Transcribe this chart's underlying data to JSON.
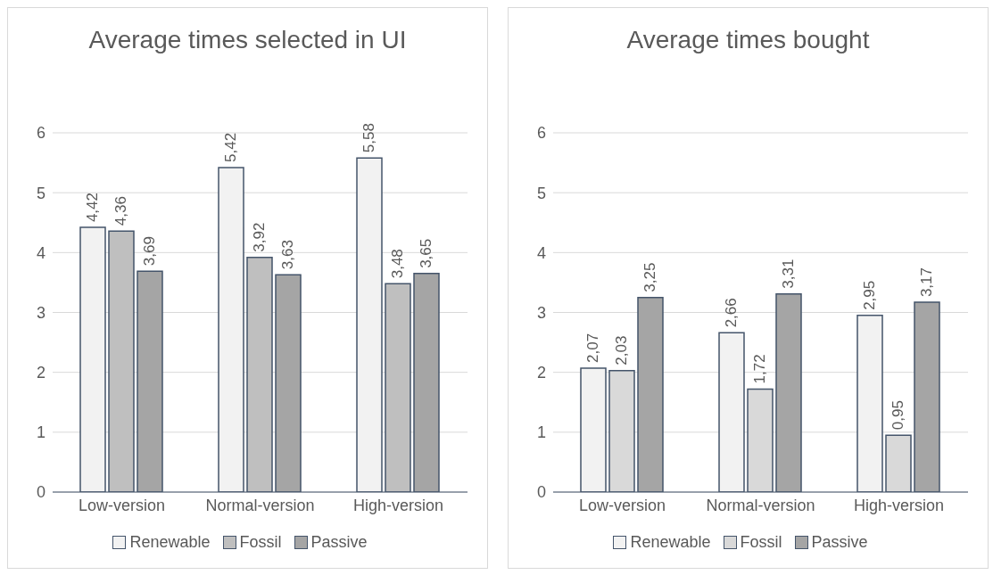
{
  "chart_data": [
    {
      "type": "bar",
      "title": "Average times selected in UI",
      "categories": [
        "Low-version",
        "Normal-version",
        "High-version"
      ],
      "series": [
        {
          "name": "Renewable",
          "color": "#f2f2f2",
          "values": [
            4.42,
            5.42,
            5.58
          ],
          "value_labels": [
            "4,42",
            "5,42",
            "5,58"
          ]
        },
        {
          "name": "Fossil",
          "color": "#bfbfbf",
          "values": [
            4.36,
            3.92,
            3.48
          ],
          "value_labels": [
            "4,36",
            "3,92",
            "3,48"
          ]
        },
        {
          "name": "Passive",
          "color": "#a5a5a5",
          "values": [
            3.69,
            3.63,
            3.65
          ],
          "value_labels": [
            "3,69",
            "3,63",
            "3,65"
          ]
        }
      ],
      "ylim": [
        0,
        6
      ],
      "yticks": [
        0,
        1,
        2,
        3,
        4,
        5,
        6
      ],
      "grid": "y",
      "legend": "bottom"
    },
    {
      "type": "bar",
      "title": "Average times bought",
      "categories": [
        "Low-version",
        "Normal-version",
        "High-version"
      ],
      "series": [
        {
          "name": "Renewable",
          "color": "#f2f2f2",
          "values": [
            2.07,
            2.66,
            2.95
          ],
          "value_labels": [
            "2,07",
            "2,66",
            "2,95"
          ]
        },
        {
          "name": "Fossil",
          "color": "#d9d9d9",
          "values": [
            2.03,
            1.72,
            0.95
          ],
          "value_labels": [
            "2,03",
            "1,72",
            "0,95"
          ]
        },
        {
          "name": "Passive",
          "color": "#a5a5a5",
          "values": [
            3.25,
            3.31,
            3.17
          ],
          "value_labels": [
            "3,25",
            "3,31",
            "3,17"
          ]
        }
      ],
      "ylim": [
        0,
        6
      ],
      "yticks": [
        0,
        1,
        2,
        3,
        4,
        5,
        6
      ],
      "grid": "y",
      "legend": "bottom"
    }
  ]
}
